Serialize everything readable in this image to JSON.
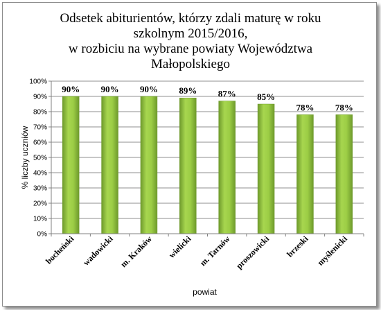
{
  "chart_data": {
    "type": "bar",
    "title_lines": [
      "Odsetek abiturientów, którzy zdali maturę  w roku",
      "szkolnym 2015/2016,",
      "w rozbiciu na wybrane powiaty Województwa",
      "Małopolskiego"
    ],
    "xlabel": "powiat",
    "ylabel": "% liczby uczniów",
    "ylim": [
      0,
      100
    ],
    "yticks": [
      "0%",
      "10%",
      "20%",
      "30%",
      "40%",
      "50%",
      "60%",
      "70%",
      "80%",
      "90%",
      "100%"
    ],
    "categories": [
      "bocheński",
      "wadowicki",
      "m. Kraków",
      "wielicki",
      "m. Tarnów",
      "proszowicki",
      "brzeski",
      "myślenicki"
    ],
    "values": [
      90,
      90,
      90,
      89,
      87,
      85,
      78,
      78
    ],
    "data_labels": [
      "90%",
      "90%",
      "90%",
      "89%",
      "87%",
      "85%",
      "78%",
      "78%"
    ],
    "grid": true,
    "bar_color": "#8cbf3f"
  }
}
